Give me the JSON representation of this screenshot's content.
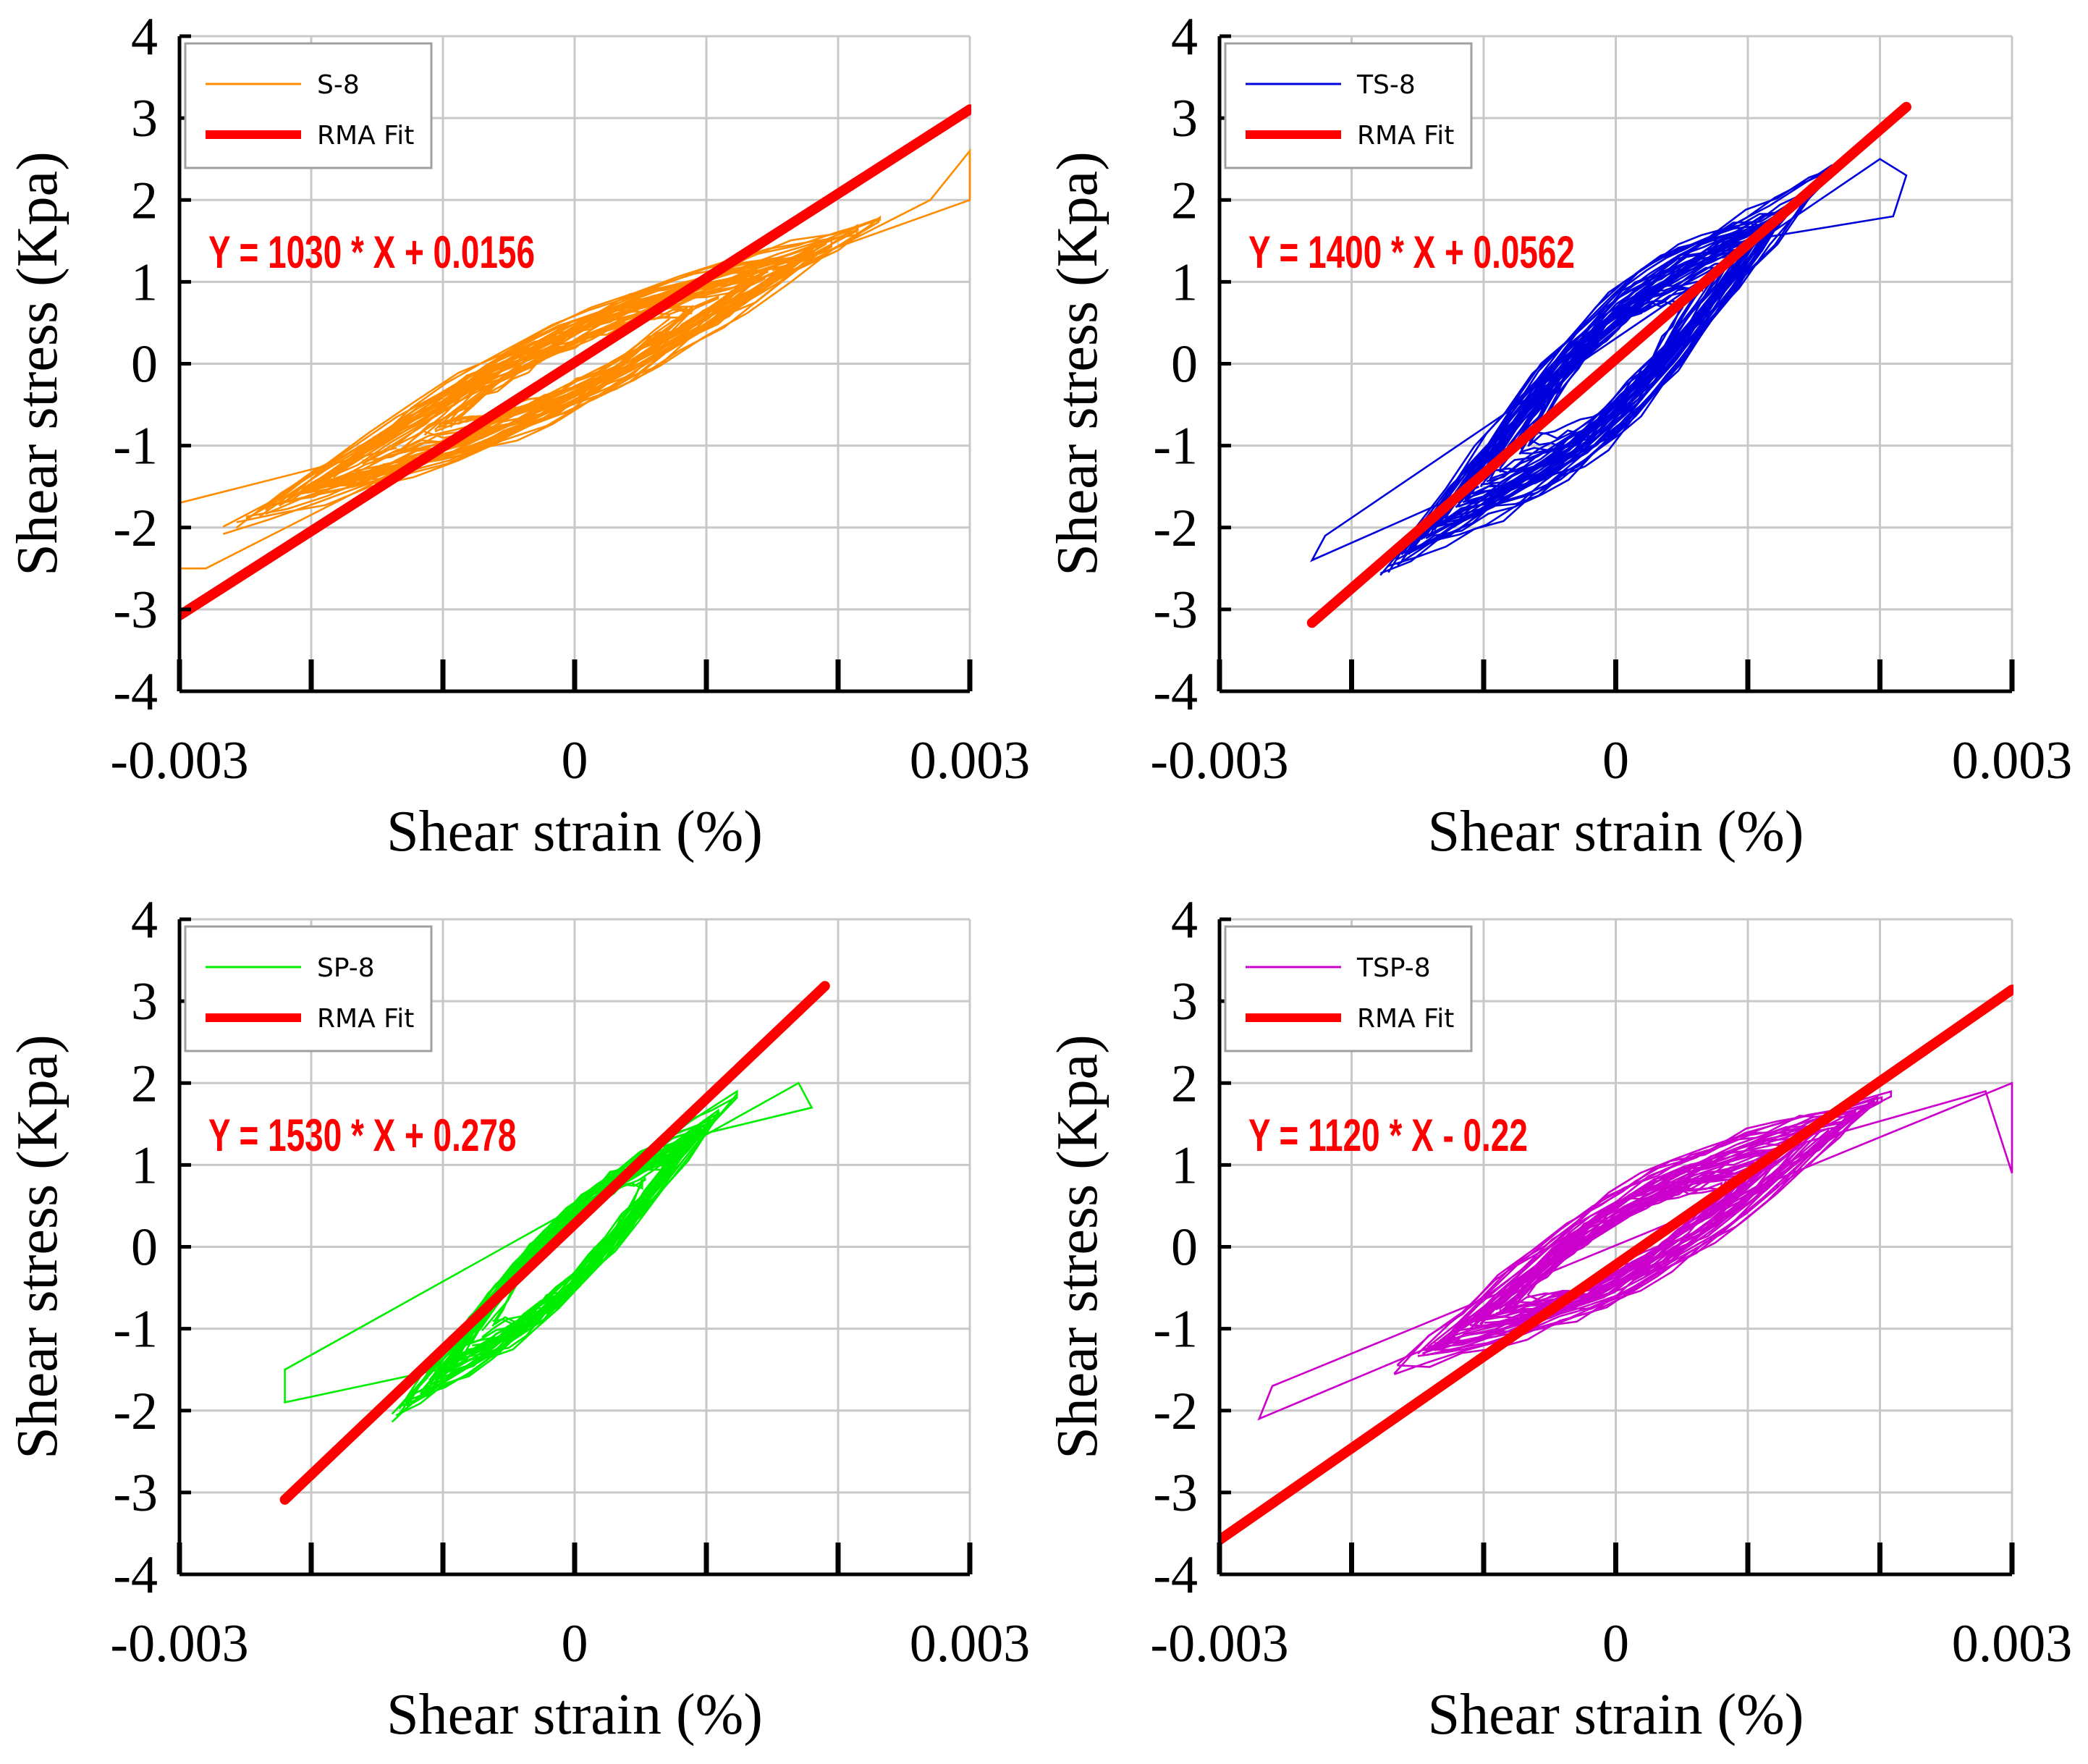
{
  "colors": {
    "fit": "#ff0000",
    "grid": "#c8c8c8",
    "axis": "#000000"
  },
  "chart_data": [
    {
      "type": "line",
      "panel": "top-left",
      "xlabel": "Shear strain (%)",
      "ylabel": "Shear stress (Kpa)",
      "xlim": [
        -0.003,
        0.003
      ],
      "ylim": [
        -4,
        4
      ],
      "x_tick_labels": [
        "-0.003",
        "0",
        "0.003"
      ],
      "y_tick_labels": [
        "4",
        "3",
        "2",
        "1",
        "0",
        "-1",
        "-2",
        "-3",
        "-4"
      ],
      "grid": true,
      "legend_position": "top-left",
      "equation": "Y = 1030 * X + 0.0156",
      "series": [
        {
          "name": "S-8",
          "kind": "hysteresis",
          "color": "#ff8c00",
          "slope": 760,
          "intercept": 0.0,
          "half_width": 0.55,
          "x_extent": [
            -0.0025,
            0.0021
          ],
          "cycles": 36,
          "outliers": [
            [
              -0.003,
              -1.7
            ],
            [
              -0.003,
              -2.5
            ],
            [
              -0.0028,
              -2.5
            ],
            [
              0.0027,
              2.0
            ],
            [
              0.003,
              2.6
            ],
            [
              0.003,
              2.0
            ]
          ]
        },
        {
          "name": "RMA Fit",
          "kind": "fit",
          "color": "#ff0000",
          "slope": 1030,
          "intercept": 0.0156,
          "x_range": [
            -0.003,
            0.003
          ]
        }
      ]
    },
    {
      "type": "line",
      "panel": "top-right",
      "xlabel": "Shear strain (%)",
      "ylabel": "Shear stress (Kpa)",
      "xlim": [
        -0.003,
        0.003
      ],
      "ylim": [
        -4,
        4
      ],
      "x_tick_labels": [
        "-0.003",
        "0",
        "0.003"
      ],
      "y_tick_labels": [
        "4",
        "3",
        "2",
        "1",
        "0",
        "-1",
        "-2",
        "-3",
        "-4"
      ],
      "grid": true,
      "legend_position": "top-left",
      "equation": "Y = 1400 * X + 0.0562",
      "series": [
        {
          "name": "TS-8",
          "kind": "hysteresis",
          "color": "#0000dd",
          "slope": 1450,
          "intercept": 0.0,
          "half_width": 0.95,
          "x_extent": [
            -0.0018,
            0.0016
          ],
          "cycles": 40,
          "outliers": [
            [
              -0.0023,
              -2.4
            ],
            [
              -0.0022,
              -2.1
            ],
            [
              0.002,
              2.5
            ],
            [
              0.0022,
              2.3
            ],
            [
              0.0021,
              1.8
            ]
          ]
        },
        {
          "name": "RMA Fit",
          "kind": "fit",
          "color": "#ff0000",
          "slope": 1400,
          "intercept": 0.0562,
          "x_range": [
            -0.0023,
            0.0022
          ]
        }
      ]
    },
    {
      "type": "line",
      "panel": "bottom-left",
      "xlabel": "Shear strain (%)",
      "ylabel": "Shear stress (Kpa)",
      "xlim": [
        -0.003,
        0.003
      ],
      "ylim": [
        -4,
        4
      ],
      "x_tick_labels": [
        "-0.003",
        "0",
        "0.003"
      ],
      "y_tick_labels": [
        "4",
        "3",
        "2",
        "1",
        "0",
        "-1",
        "-2",
        "-3",
        "-4"
      ],
      "grid": true,
      "legend_position": "top-left",
      "equation": "Y = 1530 * X + 0.278",
      "series": [
        {
          "name": "SP-8",
          "kind": "hysteresis",
          "color": "#00ee00",
          "slope": 1500,
          "intercept": 0.0,
          "half_width": 0.55,
          "x_extent": [
            -0.0013,
            0.0011
          ],
          "cycles": 34,
          "outliers": [
            [
              -0.0022,
              -1.9
            ],
            [
              -0.0022,
              -1.5
            ],
            [
              0.0017,
              2.0
            ],
            [
              0.0018,
              1.7
            ]
          ]
        },
        {
          "name": "RMA Fit",
          "kind": "fit",
          "color": "#ff0000",
          "slope": 1530,
          "intercept": 0.278,
          "x_range": [
            -0.0022,
            0.0019
          ]
        }
      ]
    },
    {
      "type": "line",
      "panel": "bottom-right",
      "xlabel": "Shear strain (%)",
      "ylabel": "Shear stress (Kpa)",
      "xlim": [
        -0.003,
        0.003
      ],
      "ylim": [
        -4,
        4
      ],
      "x_tick_labels": [
        "-0.003",
        "0",
        "0.003"
      ],
      "y_tick_labels": [
        "4",
        "3",
        "2",
        "1",
        "0",
        "-1",
        "-2",
        "-3",
        "-4"
      ],
      "grid": true,
      "legend_position": "top-left",
      "equation": "Y = 1120 * X - 0.22",
      "series": [
        {
          "name": "TSP-8",
          "kind": "hysteresis",
          "color": "#cc00cc",
          "slope": 900,
          "intercept": 0.0,
          "half_width": 0.65,
          "x_extent": [
            -0.0017,
            0.002
          ],
          "cycles": 36,
          "outliers": [
            [
              -0.0027,
              -2.1
            ],
            [
              -0.0026,
              -1.7
            ],
            [
              0.003,
              2.0
            ],
            [
              0.003,
              0.9
            ],
            [
              0.0028,
              1.9
            ]
          ]
        },
        {
          "name": "RMA Fit",
          "kind": "fit",
          "color": "#ff0000",
          "slope": 1120,
          "intercept": -0.22,
          "x_range": [
            -0.003,
            0.003
          ]
        }
      ]
    }
  ]
}
